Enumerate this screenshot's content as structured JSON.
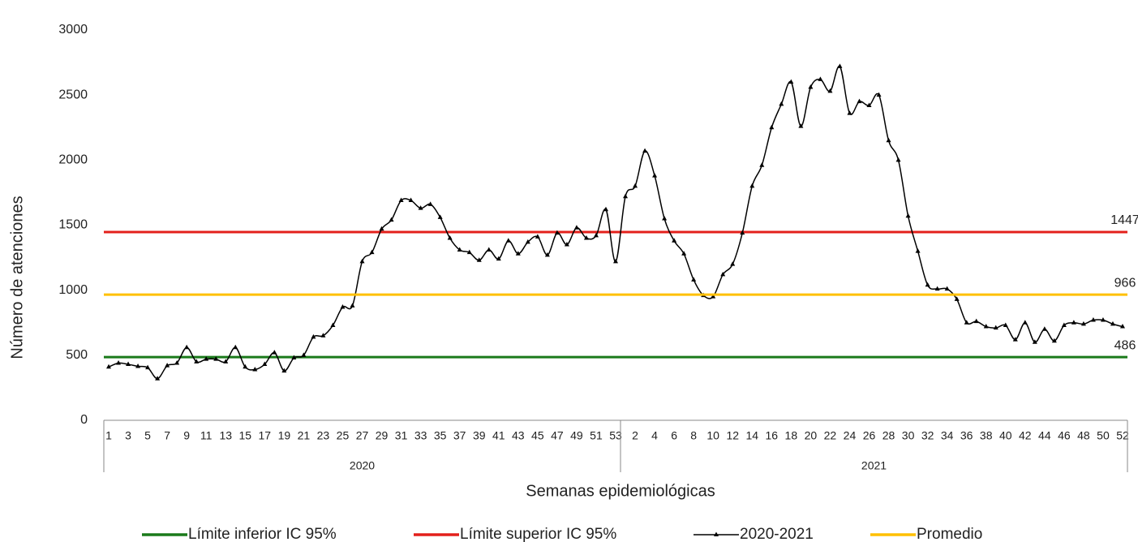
{
  "chart_data": {
    "type": "line",
    "y_label": "Número de atenciones",
    "x_label": "Semanas epidemiológicas",
    "ylim": [
      0,
      3000
    ],
    "yticks": [
      0,
      500,
      1000,
      1500,
      2000,
      2500,
      3000
    ],
    "groups": [
      {
        "label": "2020",
        "categories": [
          "1",
          null,
          "3",
          null,
          "5",
          null,
          "7",
          null,
          "9",
          null,
          "11",
          null,
          "13",
          null,
          "15",
          null,
          "17",
          null,
          "19",
          null,
          "21",
          null,
          "23",
          null,
          "25",
          null,
          "27",
          null,
          "29",
          null,
          "31",
          null,
          "33",
          null,
          "35",
          null,
          "37",
          null,
          "39",
          null,
          "41",
          null,
          "43",
          null,
          "45",
          null,
          "47",
          null,
          "49",
          null,
          "51",
          null,
          "53"
        ]
      },
      {
        "label": "2021",
        "categories": [
          null,
          "2",
          null,
          "4",
          null,
          "6",
          null,
          "8",
          null,
          "10",
          null,
          "12",
          null,
          "14",
          null,
          "16",
          null,
          "18",
          null,
          "20",
          null,
          "22",
          null,
          "24",
          null,
          "26",
          null,
          "28",
          null,
          "30",
          null,
          "32",
          null,
          "34",
          null,
          "36",
          null,
          "38",
          null,
          "40",
          null,
          "42",
          null,
          "44",
          null,
          "46",
          null,
          "48",
          null,
          "50",
          null,
          "52"
        ]
      }
    ],
    "series": [
      {
        "name": "Límite inferior IC 95%",
        "color": "#1a7a1a",
        "value": 486
      },
      {
        "name": "Límite superior IC 95%",
        "color": "#e3201b",
        "value": 1447
      },
      {
        "name": "2020-2021",
        "color": "#000000",
        "values": [
          410,
          440,
          430,
          415,
          405,
          320,
          420,
          440,
          560,
          450,
          470,
          470,
          450,
          560,
          410,
          390,
          430,
          520,
          380,
          480,
          500,
          640,
          650,
          730,
          870,
          880,
          1220,
          1290,
          1470,
          1540,
          1690,
          1690,
          1630,
          1660,
          1560,
          1400,
          1310,
          1290,
          1230,
          1310,
          1240,
          1380,
          1280,
          1370,
          1410,
          1270,
          1440,
          1350,
          1480,
          1400,
          1420,
          1620,
          1220,
          1720,
          1800,
          2070,
          1880,
          1550,
          1380,
          1280,
          1080,
          960,
          950,
          1120,
          1200,
          1440,
          1800,
          1960,
          2250,
          2430,
          2600,
          2260,
          2560,
          2620,
          2530,
          2720,
          2360,
          2450,
          2420,
          2500,
          2150,
          2000,
          1570,
          1300,
          1040,
          1010,
          1010,
          930,
          750,
          760,
          720,
          710,
          730,
          620,
          750,
          600,
          700,
          610,
          730,
          750,
          740,
          770,
          770,
          740,
          720
        ]
      },
      {
        "name": "Promedio",
        "color": "#ffc000",
        "value": 966
      }
    ]
  }
}
